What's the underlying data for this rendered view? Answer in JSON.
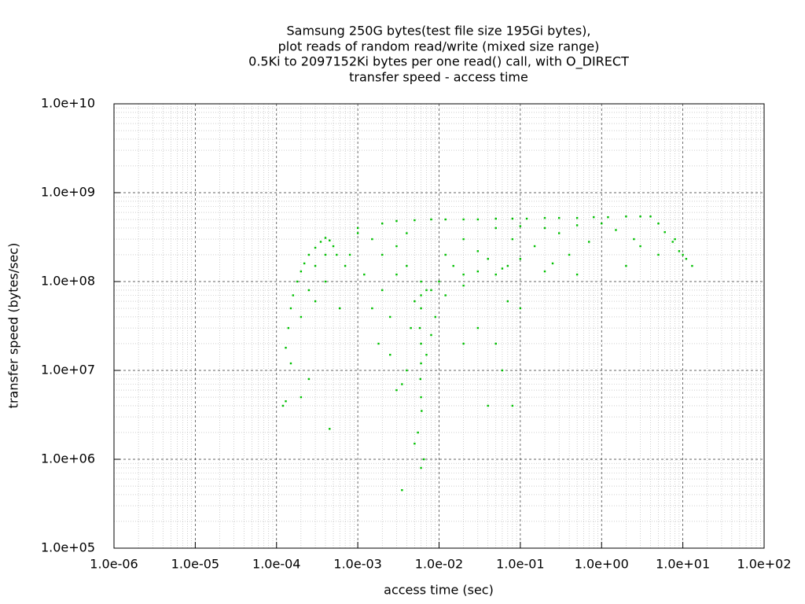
{
  "chart_data": {
    "type": "scatter",
    "title": [
      "Samsung 250G bytes(test file size 195Gi bytes),",
      "plot reads of random read/write (mixed size range)",
      "0.5Ki to 2097152Ki bytes per one read() call, with O_DIRECT",
      "transfer speed - access time"
    ],
    "x_label": "access time (sec)",
    "y_label": "transfer speed (bytes/sec)",
    "color": "#00c000",
    "xlog": true,
    "ylog": true,
    "grid": true,
    "minor_grid": true,
    "xlim": [
      1e-06,
      100
    ],
    "ylim": [
      100000,
      10000000000
    ],
    "xticks": [
      {
        "value": 1e-06,
        "label": "1.0e-06"
      },
      {
        "value": 1e-05,
        "label": "1.0e-05"
      },
      {
        "value": 0.0001,
        "label": "1.0e-04"
      },
      {
        "value": 0.001,
        "label": "1.0e-03"
      },
      {
        "value": 0.01,
        "label": "1.0e-02"
      },
      {
        "value": 0.1,
        "label": "1.0e-01"
      },
      {
        "value": 1,
        "label": "1.0e+00"
      },
      {
        "value": 10,
        "label": "1.0e+01"
      },
      {
        "value": 100,
        "label": "1.0e+02"
      }
    ],
    "yticks": [
      {
        "value": 100000,
        "label": "1.0e+05"
      },
      {
        "value": 1000000,
        "label": "1.0e+06"
      },
      {
        "value": 10000000,
        "label": "1.0e+07"
      },
      {
        "value": 100000000,
        "label": "1.0e+08"
      },
      {
        "value": 1000000000,
        "label": "1.0e+09"
      },
      {
        "value": 10000000000,
        "label": "1.0e+10"
      }
    ],
    "x": [
      0.003,
      0.005,
      0.008,
      0.012,
      0.02,
      0.03,
      0.05,
      0.08,
      0.12,
      0.2,
      0.3,
      0.5,
      0.8,
      1.2,
      2,
      3,
      4,
      5,
      6,
      7.5,
      9,
      11,
      13,
      8,
      10,
      0.05,
      0.1,
      0.2,
      0.3,
      0.5,
      1,
      1.5,
      2.5,
      3,
      0.02,
      0.03,
      0.04,
      0.06,
      0.08,
      0.15,
      0.25,
      0.4,
      0.7,
      0.012,
      0.015,
      0.02,
      0.03,
      0.05,
      0.07,
      0.1,
      0.2,
      0.5,
      2,
      5,
      0.01,
      0.008,
      0.012,
      0.02,
      0.006,
      0.006,
      0.006,
      0.0058,
      0.006,
      0.006,
      0.0059,
      0.006,
      0.0061,
      0.0055,
      0.005,
      0.0065,
      0.006,
      0.0035,
      0.004,
      0.007,
      0.008,
      0.009,
      0.0045,
      0.003,
      0.0025,
      0.005,
      0.007,
      0.001,
      0.0015,
      0.002,
      0.003,
      0.004,
      0.002,
      0.0015,
      0.001,
      0.0008,
      0.0012,
      0.0025,
      0.003,
      0.004,
      0.002,
      0.0018,
      0.0035,
      0.00013,
      0.00014,
      0.00015,
      0.00016,
      0.00018,
      0.0002,
      0.00022,
      0.00025,
      0.0003,
      0.00035,
      0.0004,
      0.00045,
      0.0005,
      0.00055,
      0.0004,
      0.0003,
      0.00025,
      0.0003,
      0.0004,
      0.0002,
      0.00015,
      0.00013,
      0.0002,
      0.00025,
      0.00045,
      0.00012,
      0.0006,
      0.0007,
      0.04,
      0.06,
      0.08,
      0.05,
      0.1,
      0.03,
      0.02,
      0.07
    ],
    "values": [
      480000000.0,
      490000000.0,
      500000000.0,
      500000000.0,
      500000000.0,
      500000000.0,
      510000000.0,
      510000000.0,
      510000000.0,
      520000000.0,
      520000000.0,
      520000000.0,
      530000000.0,
      530000000.0,
      540000000.0,
      540000000.0,
      540000000.0,
      450000000.0,
      360000000.0,
      280000000.0,
      220000000.0,
      180000000.0,
      150000000.0,
      300000000.0,
      200000000.0,
      400000000.0,
      420000000.0,
      400000000.0,
      350000000.0,
      430000000.0,
      450000000.0,
      380000000.0,
      300000000.0,
      250000000.0,
      300000000.0,
      220000000.0,
      180000000.0,
      140000000.0,
      300000000.0,
      250000000.0,
      160000000.0,
      200000000.0,
      280000000.0,
      200000000.0,
      150000000.0,
      120000000.0,
      130000000.0,
      120000000.0,
      150000000.0,
      180000000.0,
      130000000.0,
      120000000.0,
      150000000.0,
      200000000.0,
      100000000.0,
      80000000.0,
      70000000.0,
      90000000.0,
      100000000.0,
      70000000.0,
      50000000.0,
      30000000.0,
      20000000.0,
      12000000.0,
      8000000.0,
      5000000.0,
      3500000.0,
      2000000.0,
      1500000.0,
      1000000.0,
      800000.0,
      450000.0,
      10000000.0,
      15000000.0,
      25000000.0,
      40000000.0,
      30000000.0,
      6000000.0,
      15000000.0,
      60000000.0,
      80000000.0,
      400000000.0,
      300000000.0,
      200000000.0,
      120000000.0,
      150000000.0,
      80000000.0,
      50000000.0,
      350000000.0,
      200000000.0,
      120000000.0,
      40000000.0,
      250000000.0,
      350000000.0,
      450000000.0,
      20000000.0,
      7000000.0,
      18000000.0,
      30000000.0,
      50000000.0,
      70000000.0,
      100000000.0,
      130000000.0,
      160000000.0,
      200000000.0,
      240000000.0,
      280000000.0,
      310000000.0,
      290000000.0,
      250000000.0,
      200000000.0,
      200000000.0,
      150000000.0,
      80000000.0,
      60000000.0,
      100000000.0,
      40000000.0,
      12000000.0,
      4500000.0,
      5000000.0,
      8000000.0,
      2200000.0,
      4000000.0,
      50000000.0,
      150000000.0,
      4000000.0,
      10000000.0,
      4000000.0,
      20000000.0,
      50000000.0,
      30000000.0,
      20000000.0,
      60000000.0
    ]
  }
}
